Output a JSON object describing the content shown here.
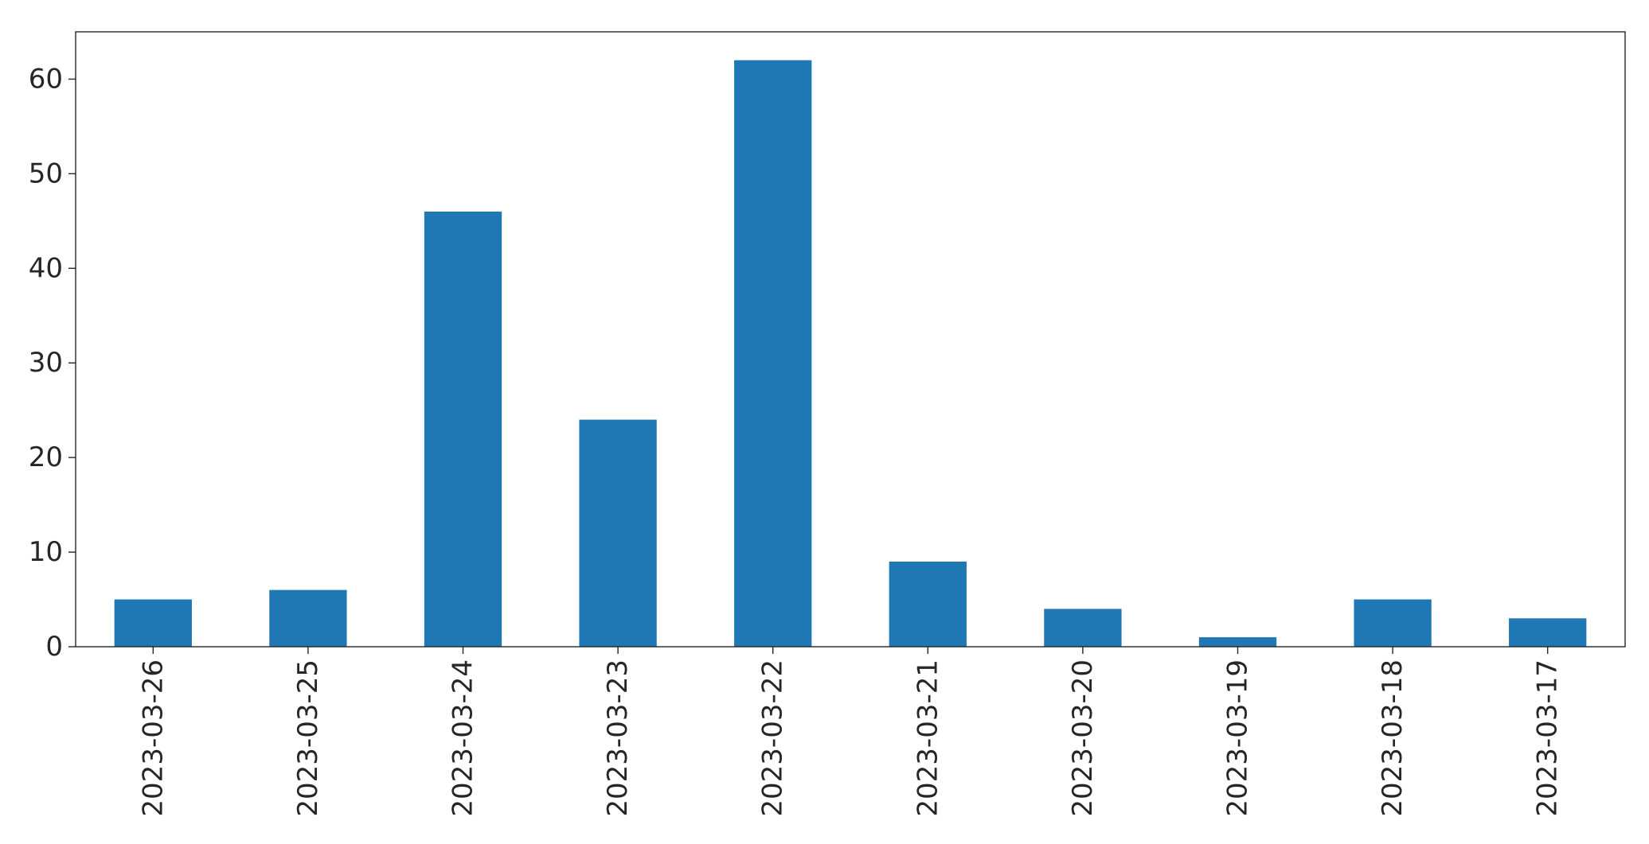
{
  "chart_data": {
    "type": "bar",
    "title": "",
    "xlabel": "",
    "ylabel": "",
    "categories": [
      "2023-03-26",
      "2023-03-25",
      "2023-03-24",
      "2023-03-23",
      "2023-03-22",
      "2023-03-21",
      "2023-03-20",
      "2023-03-19",
      "2023-03-18",
      "2023-03-17"
    ],
    "values": [
      5,
      6,
      46,
      24,
      62,
      9,
      4,
      1,
      5,
      3
    ],
    "ylim": [
      0,
      65
    ],
    "yticks": [
      0,
      10,
      20,
      30,
      40,
      50,
      60
    ],
    "grid": false,
    "legend": "none",
    "bar_color": "#1f77b4"
  }
}
